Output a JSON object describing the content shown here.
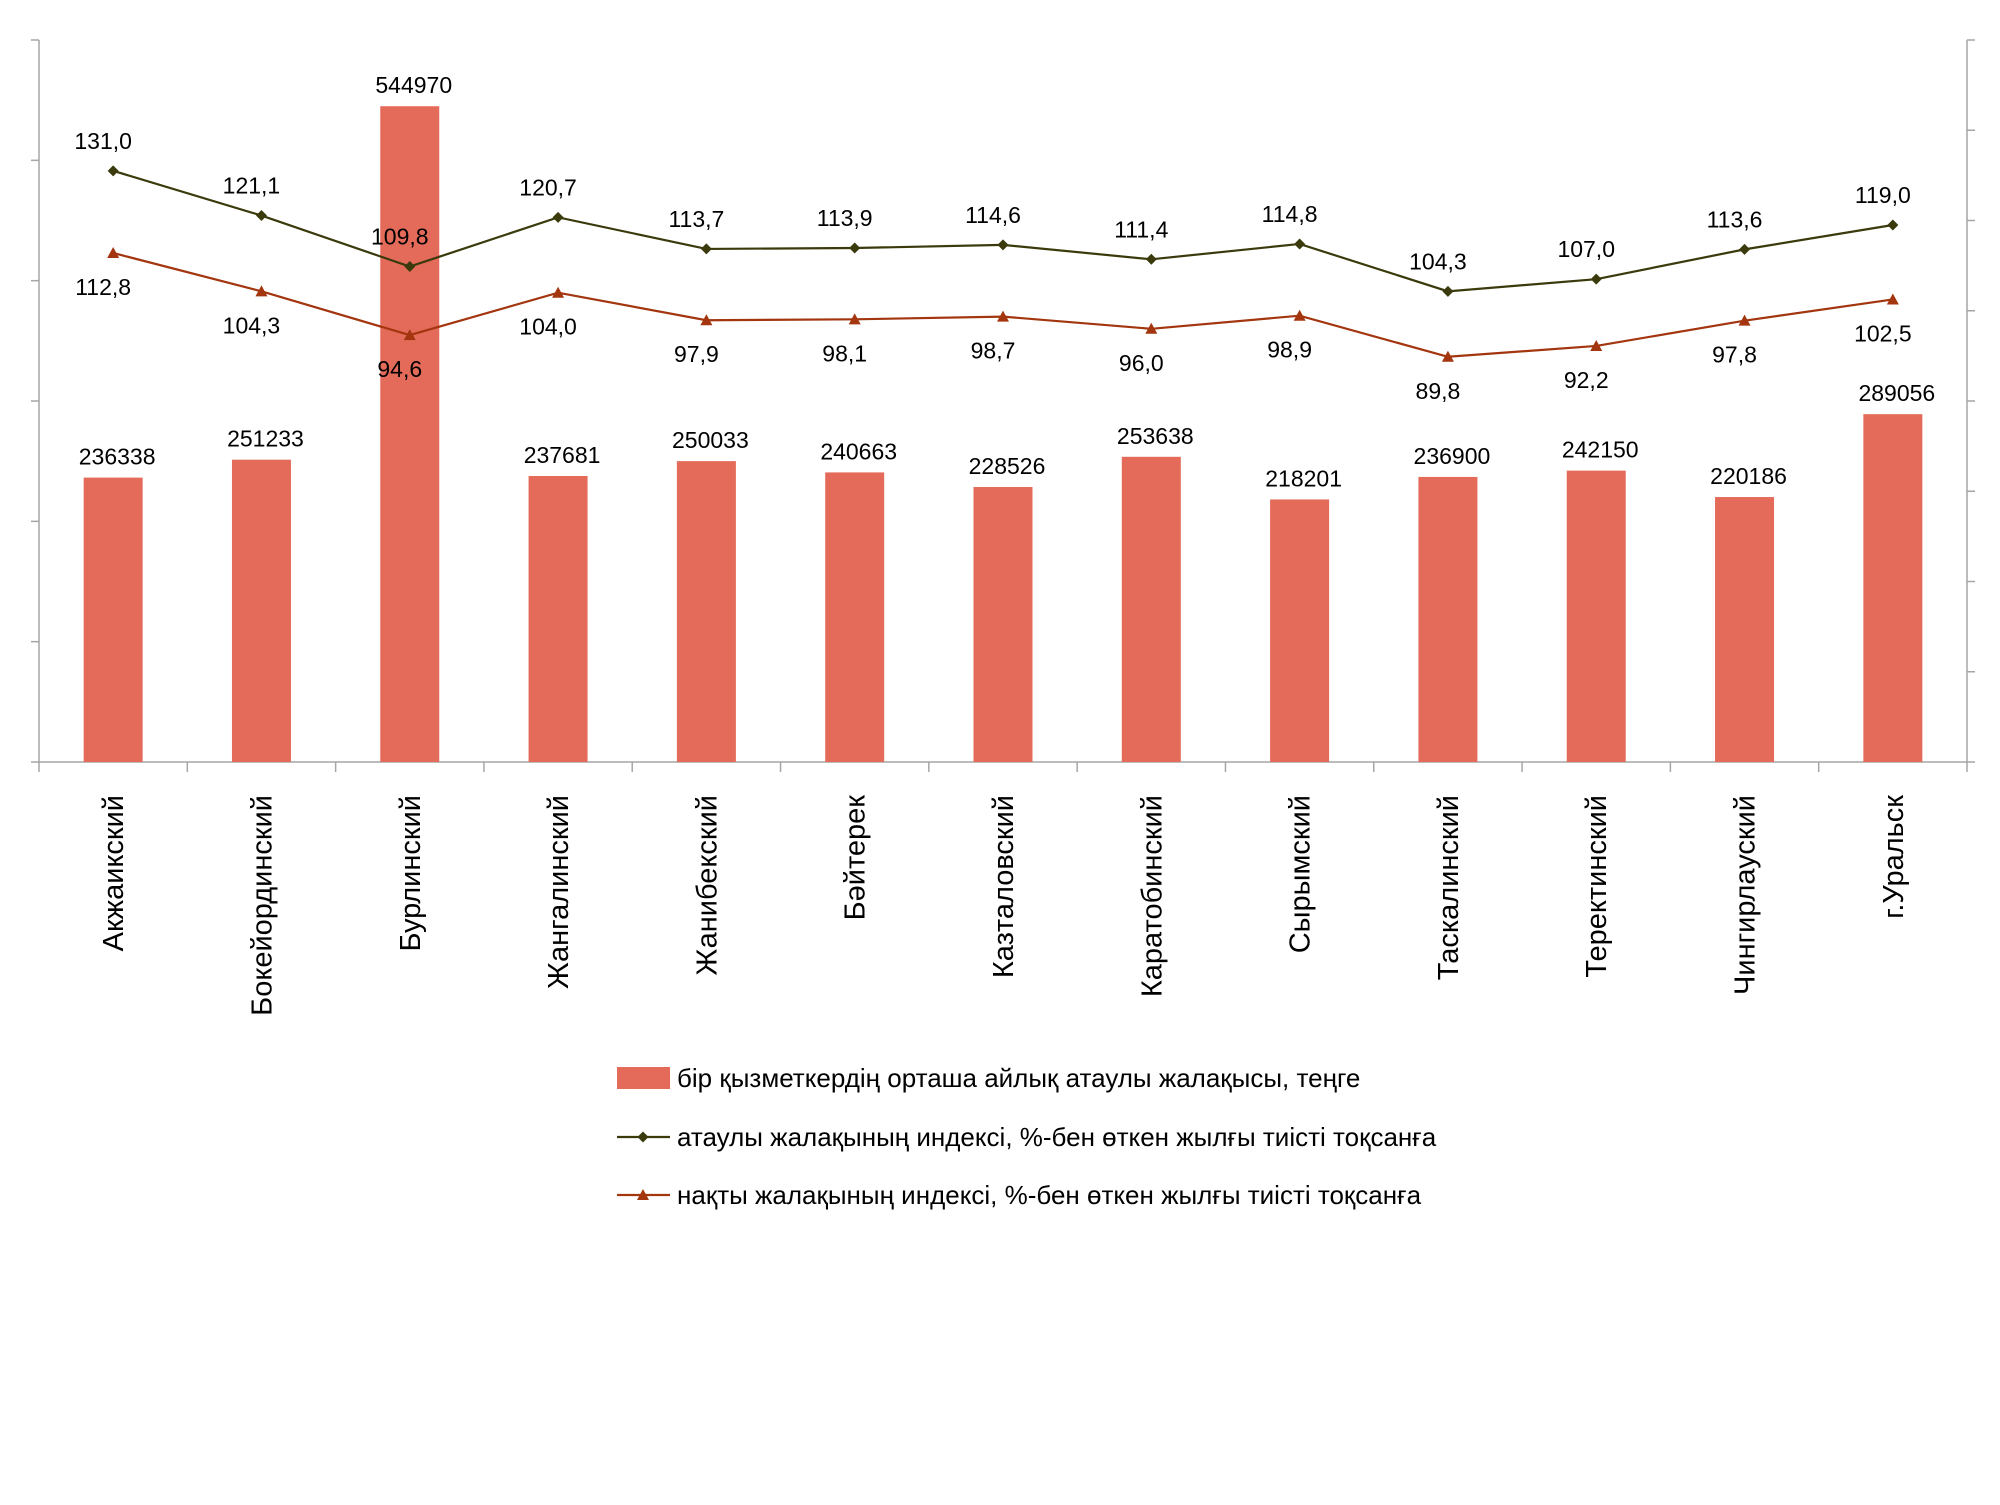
{
  "chart_data": {
    "type": "bar",
    "categories": [
      "Акжаикский",
      "Бокейординский",
      "Бурлинский",
      "Жангалинский",
      "Жанибекский",
      "Бәйтерек",
      "Казталовский",
      "Каратобинский",
      "Сырымский",
      "Таскалинский",
      "Теректинский",
      "Чингирлауский",
      "г.Уральск"
    ],
    "series": [
      {
        "name": "бір қызметкердің орташа айлық  атаулы жалақысы, теңге",
        "kind": "bar",
        "axis": "left",
        "color": "#e46b5a",
        "values": [
          236338,
          251233,
          544970,
          237681,
          250033,
          240663,
          228526,
          253638,
          218201,
          236900,
          242150,
          220186,
          289056
        ],
        "labels": [
          "236338",
          "251233",
          "544970",
          "237681",
          "250033",
          "240663",
          "228526",
          "253638",
          "218201",
          "236900",
          "242150",
          "220186",
          "289056"
        ]
      },
      {
        "name": "атаулы жалақының индексі,  %-бен өткен жылғы тиісті тоқсанға",
        "kind": "line",
        "marker": "diamond",
        "axis": "right",
        "color": "#3b3a0c",
        "values": [
          131.0,
          121.1,
          109.8,
          120.7,
          113.7,
          113.9,
          114.6,
          111.4,
          114.8,
          104.3,
          107.0,
          113.6,
          119.0
        ],
        "labels": [
          "131,0",
          "121,1",
          "109,8",
          "120,7",
          "113,7",
          "113,9",
          "114,6",
          "111,4",
          "114,8",
          "104,3",
          "107,0",
          "113,6",
          "119,0"
        ]
      },
      {
        "name": "нақты жалақының индексі, %-бен өткен жылғы тиісті тоқсанға",
        "kind": "line",
        "marker": "triangle",
        "axis": "right",
        "color": "#a3350f",
        "values": [
          112.8,
          104.3,
          94.6,
          104.0,
          97.9,
          98.1,
          98.7,
          96.0,
          98.9,
          89.8,
          92.2,
          97.8,
          102.5
        ],
        "labels": [
          "112,8",
          "104,3",
          "94,6",
          "104,0",
          "97,9",
          "98,1",
          "98,7",
          "96,0",
          "98,9",
          "89,8",
          "92,2",
          "97,8",
          "102,5"
        ]
      }
    ],
    "ylim_left": [
      0,
      600000
    ],
    "ylim_right": [
      0,
      160
    ],
    "left_tick_count": 6,
    "right_tick_count": 8,
    "axis_tick_labels_shown": false,
    "grid": false,
    "legend_position": "bottom"
  }
}
